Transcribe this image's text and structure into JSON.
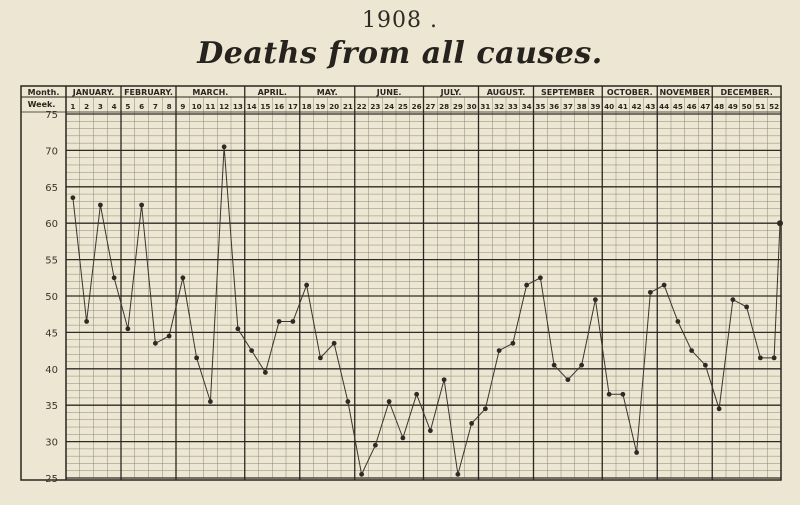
{
  "chart_data": {
    "type": "line",
    "year_label": "1908 .",
    "title": "Deaths from all causes.",
    "month_header_label": "Month.",
    "week_header_label": "Week.",
    "months": [
      {
        "name": "JANUARY.",
        "start_week": 1,
        "end_week": 4
      },
      {
        "name": "FEBRUARY.",
        "start_week": 5,
        "end_week": 8
      },
      {
        "name": "MARCH.",
        "start_week": 9,
        "end_week": 13
      },
      {
        "name": "APRIL.",
        "start_week": 14,
        "end_week": 17
      },
      {
        "name": "MAY.",
        "start_week": 18,
        "end_week": 21
      },
      {
        "name": "JUNE.",
        "start_week": 22,
        "end_week": 26
      },
      {
        "name": "JULY.",
        "start_week": 27,
        "end_week": 30
      },
      {
        "name": "AUGUST.",
        "start_week": 31,
        "end_week": 34
      },
      {
        "name": "SEPTEMBER",
        "start_week": 35,
        "end_week": 39
      },
      {
        "name": "OCTOBER.",
        "start_week": 40,
        "end_week": 43
      },
      {
        "name": "NOVEMBER",
        "start_week": 44,
        "end_week": 47
      },
      {
        "name": "DECEMBER.",
        "start_week": 48,
        "end_week": 52
      }
    ],
    "weeks": [
      "1",
      "2",
      "3",
      "4",
      "5",
      "6",
      "7",
      "8",
      "9",
      "10",
      "11",
      "12",
      "13",
      "14",
      "15",
      "16",
      "17",
      "18",
      "19",
      "20",
      "21",
      "22",
      "23",
      "24",
      "25",
      "26",
      "27",
      "28",
      "29",
      "30",
      "31",
      "32",
      "33",
      "34",
      "35",
      "36",
      "37",
      "38",
      "39",
      "40",
      "41",
      "42",
      "43",
      "44",
      "45",
      "46",
      "47",
      "48",
      "49",
      "50",
      "51",
      "52"
    ],
    "values": [
      63.5,
      46.5,
      62.5,
      52.5,
      45.5,
      62.5,
      43.5,
      44.5,
      52.5,
      41.5,
      35.5,
      70.5,
      45.5,
      42.5,
      39.5,
      46.5,
      46.5,
      51.5,
      41.5,
      43.5,
      35.5,
      25.5,
      29.5,
      35.5,
      30.5,
      36.5,
      31.5,
      38.5,
      25.5,
      32.5,
      34.5,
      42.5,
      43.5,
      51.5,
      52.5,
      40.5,
      38.5,
      40.5,
      49.5,
      36.5,
      36.5,
      28.5,
      50.5,
      51.5,
      46.5,
      42.5,
      40.5,
      34.5,
      49.5,
      48.5,
      41.5,
      41.5
    ],
    "end_value": 60,
    "ylim": [
      25,
      75
    ],
    "yticks": [
      25,
      30,
      35,
      40,
      45,
      50,
      55,
      60,
      65,
      70,
      75
    ],
    "grid": true,
    "colors": {
      "paper": "#ece6d2",
      "ink": "#2b2620",
      "grid_minor": "#6e665c",
      "grid_major": "#2f2a24"
    }
  }
}
